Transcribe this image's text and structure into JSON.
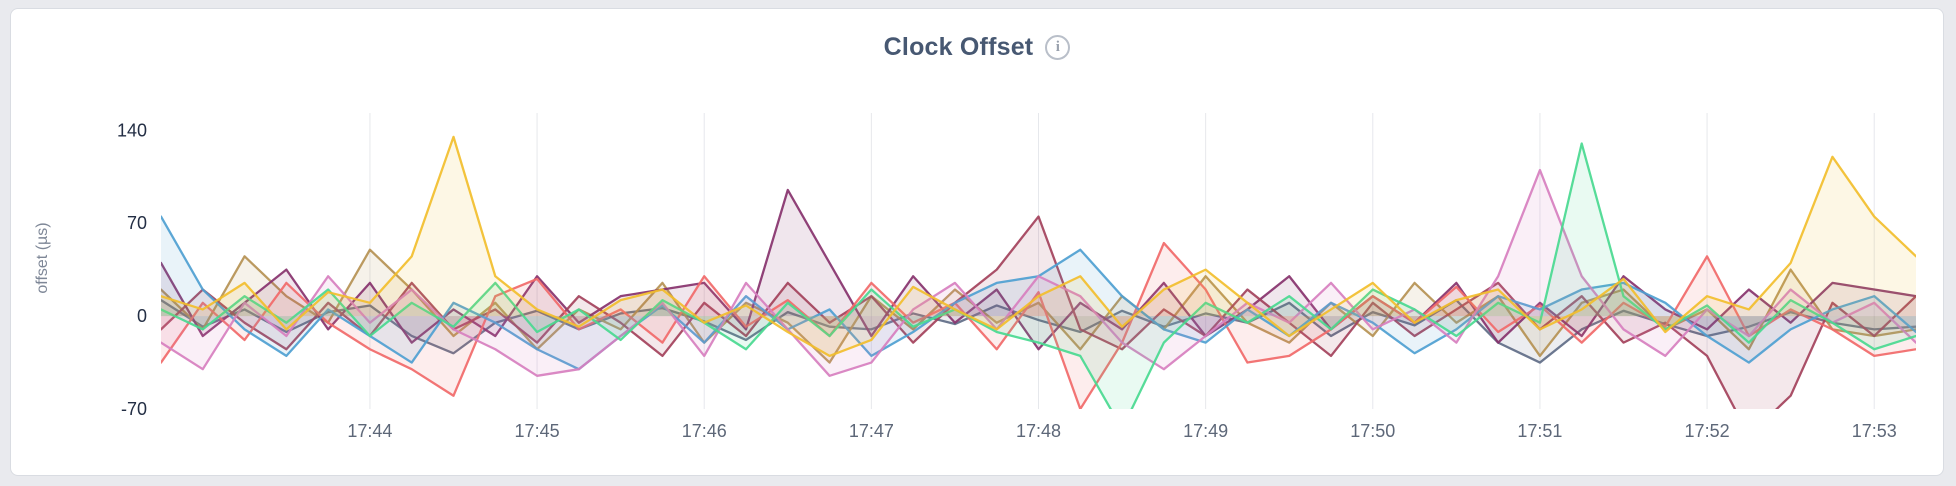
{
  "page": {
    "background": "#e9eaee"
  },
  "card": {
    "background": "#ffffff",
    "border_color": "#d9dce2"
  },
  "header": {
    "title": "Clock Offset",
    "info_glyph": "i"
  },
  "chart_data": {
    "type": "line",
    "title": "Clock Offset",
    "xlabel": "",
    "ylabel": "offset (µs)",
    "legend": "none",
    "grid": "vertical",
    "y_ticks": [
      140,
      70,
      0,
      -70
    ],
    "ylim": [
      -70,
      153
    ],
    "x_tick_labels": [
      "17:44",
      "17:45",
      "17:46",
      "17:47",
      "17:48",
      "17:49",
      "17:50",
      "17:51",
      "17:52",
      "17:53"
    ],
    "x_tick_positions": [
      5,
      9,
      13,
      17,
      21,
      25,
      29,
      33,
      37,
      41
    ],
    "points_per_series": 43,
    "x_interval_seconds": 15,
    "fill_opacity": 0.12,
    "gridline_color": "#e6e8ec",
    "x_tick_color": "#5d6778",
    "y_tick_color": "#232e44",
    "series": [
      {
        "color": "#5F6C87",
        "values": [
          12,
          -8,
          5,
          -12,
          3,
          8,
          -15,
          -28,
          -5,
          4,
          -10,
          2,
          6,
          -4,
          -18,
          3,
          -8,
          -10,
          2,
          -6,
          8,
          -3,
          -12,
          4,
          -8,
          2,
          -5,
          10,
          -15,
          3,
          -7,
          12,
          -20,
          -35,
          -10,
          4,
          -6,
          -15,
          -8,
          3,
          -5,
          -10,
          -8
        ]
      },
      {
        "color": "#B59153",
        "values": [
          20,
          -10,
          45,
          15,
          -5,
          50,
          20,
          -15,
          10,
          -25,
          5,
          -10,
          25,
          -20,
          10,
          -5,
          -35,
          15,
          -10,
          20,
          -5,
          10,
          -25,
          15,
          -10,
          30,
          -5,
          -20,
          10,
          -15,
          25,
          -5,
          15,
          -30,
          10,
          20,
          -10,
          5,
          -25,
          35,
          -10,
          -15,
          -10
        ]
      },
      {
        "color": "#87326D",
        "values": [
          40,
          -15,
          10,
          35,
          -10,
          25,
          -20,
          5,
          -15,
          30,
          -5,
          15,
          20,
          25,
          -10,
          95,
          40,
          -15,
          30,
          -5,
          20,
          -25,
          10,
          -10,
          25,
          -15,
          5,
          30,
          -10,
          15,
          -5,
          25,
          -20,
          10,
          -15,
          30,
          5,
          -10,
          20,
          -5,
          25,
          20,
          15
        ]
      },
      {
        "color": "#A3415B",
        "values": [
          -10,
          20,
          -5,
          -25,
          10,
          -15,
          25,
          -10,
          5,
          -20,
          15,
          -5,
          -30,
          10,
          -15,
          25,
          -5,
          15,
          -20,
          10,
          35,
          75,
          -10,
          -25,
          5,
          -15,
          20,
          -5,
          -30,
          10,
          -15,
          5,
          25,
          -10,
          15,
          -20,
          -5,
          -30,
          -90,
          -60,
          10,
          -15,
          15
        ]
      },
      {
        "color": "#F16969",
        "values": [
          -35,
          10,
          -18,
          25,
          -5,
          -25,
          -40,
          -60,
          15,
          28,
          -10,
          5,
          -20,
          30,
          -8,
          12,
          -15,
          25,
          -5,
          10,
          -25,
          18,
          -70,
          -20,
          55,
          20,
          -35,
          -30,
          -10,
          15,
          -5,
          22,
          -12,
          8,
          -20,
          10,
          -8,
          45,
          -15,
          5,
          -10,
          -30,
          -25
        ]
      },
      {
        "color": "#4E9FD1",
        "values": [
          75,
          20,
          -10,
          -30,
          5,
          -15,
          -35,
          10,
          -5,
          -25,
          -40,
          -15,
          8,
          -20,
          15,
          -10,
          5,
          -30,
          -12,
          10,
          25,
          30,
          50,
          15,
          -10,
          -20,
          5,
          -15,
          10,
          -5,
          -28,
          -10,
          15,
          5,
          20,
          25,
          10,
          -15,
          -35,
          -10,
          5,
          15,
          -12
        ]
      },
      {
        "color": "#D77FBF",
        "values": [
          -20,
          -40,
          10,
          -15,
          30,
          -5,
          20,
          -10,
          -25,
          -45,
          -40,
          -15,
          10,
          -30,
          25,
          -10,
          -45,
          -35,
          5,
          25,
          -10,
          30,
          15,
          -20,
          -40,
          -15,
          10,
          -5,
          25,
          -10,
          5,
          -20,
          30,
          110,
          30,
          -10,
          -30,
          5,
          -15,
          20,
          -5,
          10,
          -20
        ]
      },
      {
        "color": "#49D990",
        "values": [
          5,
          -10,
          15,
          -5,
          20,
          -15,
          10,
          -8,
          25,
          -12,
          5,
          -18,
          12,
          -5,
          -25,
          10,
          -15,
          20,
          -8,
          5,
          -12,
          -20,
          -30,
          -85,
          -20,
          10,
          -5,
          15,
          -10,
          20,
          5,
          -15,
          10,
          -5,
          130,
          15,
          -10,
          8,
          -20,
          12,
          -5,
          -25,
          -15
        ]
      },
      {
        "color": "#F2BE2C",
        "values": [
          15,
          5,
          25,
          -10,
          18,
          10,
          45,
          135,
          30,
          5,
          -8,
          12,
          20,
          -5,
          8,
          -12,
          -30,
          -18,
          22,
          5,
          -10,
          15,
          30,
          -8,
          20,
          35,
          10,
          -15,
          5,
          25,
          -5,
          12,
          20,
          -10,
          5,
          28,
          -12,
          15,
          5,
          40,
          120,
          75,
          45
        ]
      }
    ]
  }
}
